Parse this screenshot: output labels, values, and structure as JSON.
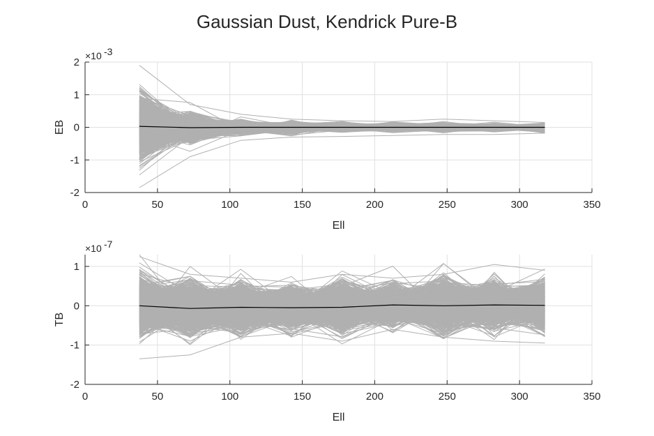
{
  "title": "Gaussian Dust, Kendrick Pure-B",
  "colors": {
    "background": "#ffffff",
    "grid": "#e0e0e0",
    "axis": "#262626",
    "realizations": "#b0b0b0",
    "mean": "#000000"
  },
  "chart_data": [
    {
      "type": "line",
      "xlabel": "Ell",
      "ylabel": "EB",
      "xlim": [
        0,
        350
      ],
      "ylim": [
        -2,
        2
      ],
      "xticks": [
        "0",
        "50",
        "100",
        "150",
        "200",
        "250",
        "300",
        "350"
      ],
      "yticks": [
        "-2",
        "-1",
        "0",
        "1",
        "2"
      ],
      "multiplier": "×10",
      "multiplier_exponent": "-3",
      "grid": true,
      "x": [
        37.5,
        72.5,
        107.5,
        142.5,
        177.5,
        212.5,
        247.5,
        282.5,
        317.5
      ],
      "series": [
        {
          "values": [
            0.03,
            -0.01,
            0.0,
            0.0,
            0.0,
            0.0,
            0.0,
            0.0,
            0.0
          ]
        }
      ],
      "realizations": {
        "count": 1000,
        "spread_sigma": [
          0.45,
          0.18,
          0.09,
          0.07,
          0.055,
          0.05,
          0.055,
          0.045,
          0.05
        ],
        "envelope_max": [
          1.9,
          0.7,
          0.4,
          0.25,
          0.2,
          0.18,
          0.25,
          0.2,
          0.15
        ],
        "envelope_min": [
          -1.85,
          -0.9,
          -0.4,
          -0.3,
          -0.28,
          -0.25,
          -0.22,
          -0.22,
          -0.18
        ]
      }
    },
    {
      "type": "line",
      "xlabel": "Ell",
      "ylabel": "TB",
      "xlim": [
        0,
        350
      ],
      "ylim": [
        -2,
        1.3
      ],
      "xticks": [
        "0",
        "50",
        "100",
        "150",
        "200",
        "250",
        "300",
        "350"
      ],
      "yticks": [
        "-2",
        "-1",
        "0",
        "1"
      ],
      "ytick_values": [
        -2,
        -1,
        0,
        1
      ],
      "multiplier": "×10",
      "multiplier_exponent": "-7",
      "grid": true,
      "x": [
        37.5,
        72.5,
        107.5,
        142.5,
        177.5,
        212.5,
        247.5,
        282.5,
        317.5
      ],
      "series": [
        {
          "values": [
            0.0,
            -0.07,
            -0.04,
            -0.05,
            -0.04,
            0.02,
            0.0,
            0.02,
            0.01
          ]
        }
      ],
      "realizations": {
        "count": 1000,
        "spread_sigma": [
          0.33,
          0.3,
          0.27,
          0.24,
          0.28,
          0.23,
          0.3,
          0.26,
          0.28
        ],
        "envelope_max": [
          1.25,
          0.8,
          0.7,
          0.6,
          0.8,
          0.7,
          0.8,
          1.05,
          0.9
        ],
        "envelope_min": [
          -1.35,
          -1.25,
          -0.8,
          -0.7,
          -0.9,
          -0.6,
          -0.8,
          -0.9,
          -0.95
        ]
      }
    }
  ]
}
